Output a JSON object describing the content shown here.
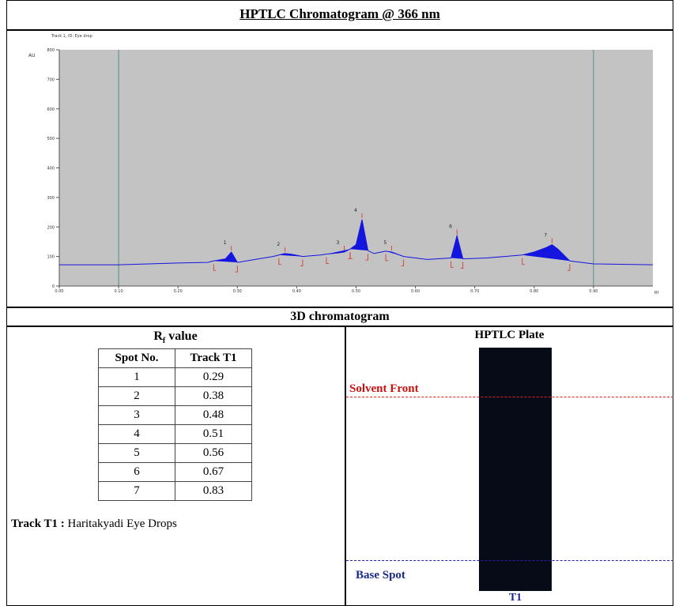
{
  "title": "HPTLC Chromatogram @ 366 nm",
  "chart_data": {
    "type": "line",
    "track_label": "Track 1, ID: Eye drop",
    "y_label": "AU",
    "x_label": "Rf",
    "x": [
      0,
      0.1,
      0.2,
      0.25,
      0.26,
      0.28,
      0.29,
      0.3,
      0.33,
      0.36,
      0.37,
      0.38,
      0.39,
      0.41,
      0.44,
      0.45,
      0.47,
      0.48,
      0.49,
      0.5,
      0.51,
      0.52,
      0.53,
      0.55,
      0.56,
      0.58,
      0.62,
      0.66,
      0.67,
      0.68,
      0.72,
      0.78,
      0.8,
      0.82,
      0.83,
      0.84,
      0.86,
      0.9,
      1.0
    ],
    "series": [
      {
        "color": "#1515e0",
        "values": [
          72,
          72,
          78,
          80,
          85,
          92,
          115,
          80,
          90,
          100,
          105,
          110,
          108,
          100,
          105,
          108,
          112,
          115,
          125,
          140,
          225,
          120,
          110,
          118,
          115,
          100,
          90,
          95,
          170,
          92,
          95,
          105,
          115,
          130,
          140,
          125,
          85,
          75,
          72
        ]
      }
    ],
    "peaks": [
      {
        "label": "1",
        "x": 0.29,
        "start": 0.26,
        "end": 0.3
      },
      {
        "label": "2",
        "x": 0.38,
        "start": 0.37,
        "end": 0.41
      },
      {
        "label": "3",
        "x": 0.48,
        "start": 0.45,
        "end": 0.49
      },
      {
        "label": "4",
        "x": 0.51,
        "start": 0.49,
        "end": 0.52
      },
      {
        "label": "5",
        "x": 0.56,
        "start": 0.55,
        "end": 0.58
      },
      {
        "label": "6",
        "x": 0.67,
        "start": 0.66,
        "end": 0.68
      },
      {
        "label": "7",
        "x": 0.83,
        "start": 0.78,
        "end": 0.86
      }
    ],
    "reference_lines": [
      0.1,
      0.9
    ],
    "xlim": [
      0,
      1.0
    ],
    "ylim": [
      0,
      800
    ],
    "xticks": [
      {
        "value": 0,
        "label": "0.00"
      },
      {
        "value": 0.1,
        "label": "0.10"
      },
      {
        "value": 0.2,
        "label": "0.20"
      },
      {
        "value": 0.3,
        "label": "0.30"
      },
      {
        "value": 0.4,
        "label": "0.40"
      },
      {
        "value": 0.5,
        "label": "0.50"
      },
      {
        "value": 0.6,
        "label": "0.60"
      },
      {
        "value": 0.7,
        "label": "0.70"
      },
      {
        "value": 0.8,
        "label": "0.80"
      },
      {
        "value": 0.9,
        "label": "0.90"
      }
    ],
    "yticks": [
      0,
      100,
      200,
      300,
      400,
      500,
      600,
      700,
      800
    ],
    "background": "#c3c3c3"
  },
  "section_title": "3D chromatogram",
  "rf_title": {
    "main": "R",
    "sub": "f",
    "rest": " value"
  },
  "rf_table": {
    "header": [
      "Spot No.",
      "Track T1"
    ],
    "rows": [
      [
        "1",
        "0.29"
      ],
      [
        "2",
        "0.38"
      ],
      [
        "3",
        "0.48"
      ],
      [
        "4",
        "0.51"
      ],
      [
        "5",
        "0.56"
      ],
      [
        "6",
        "0.67"
      ],
      [
        "7",
        "0.83"
      ]
    ]
  },
  "track_note": {
    "key": "Track T1 :",
    "text": " Haritakyadi Eye Drops"
  },
  "plate": {
    "title": "HPTLC Plate",
    "solvent_front": "Solvent Front",
    "base_spot": "Base Spot",
    "track": "T1"
  }
}
